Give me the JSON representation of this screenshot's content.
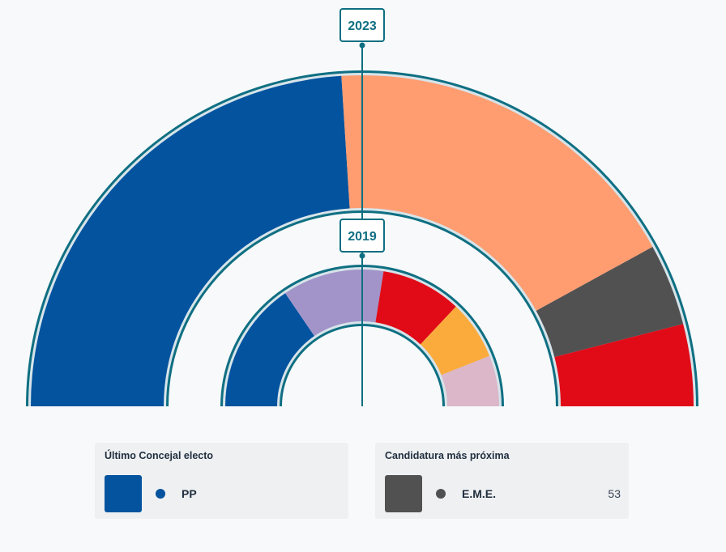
{
  "chart_data": {
    "type": "pie",
    "variant": "nested-semicircle",
    "rings": [
      {
        "year": "2023",
        "slices": [
          {
            "color": "#03539f",
            "value": 48
          },
          {
            "color": "#ff9d71",
            "value": 36
          },
          {
            "color": "#515151",
            "value": 8
          },
          {
            "color": "#e10b18",
            "value": 8
          }
        ]
      },
      {
        "year": "2019",
        "slices": [
          {
            "color": "#03539f",
            "value": 31
          },
          {
            "color": "#a294c9",
            "value": 24
          },
          {
            "color": "#e10b18",
            "value": 19
          },
          {
            "color": "#fbab3c",
            "value": 14
          },
          {
            "color": "#dbb7c9",
            "value": 12
          }
        ]
      }
    ]
  },
  "colors": {
    "frame": "#0f6f82",
    "frame_inner": "#d7e4ea"
  },
  "legend": {
    "last_elected": {
      "title": "Último Concejal electo",
      "party": "PP",
      "color": "#03539f"
    },
    "next_candidate": {
      "title": "Candidatura más próxima",
      "party": "E.M.E.",
      "votes": "53",
      "color": "#515151"
    }
  }
}
